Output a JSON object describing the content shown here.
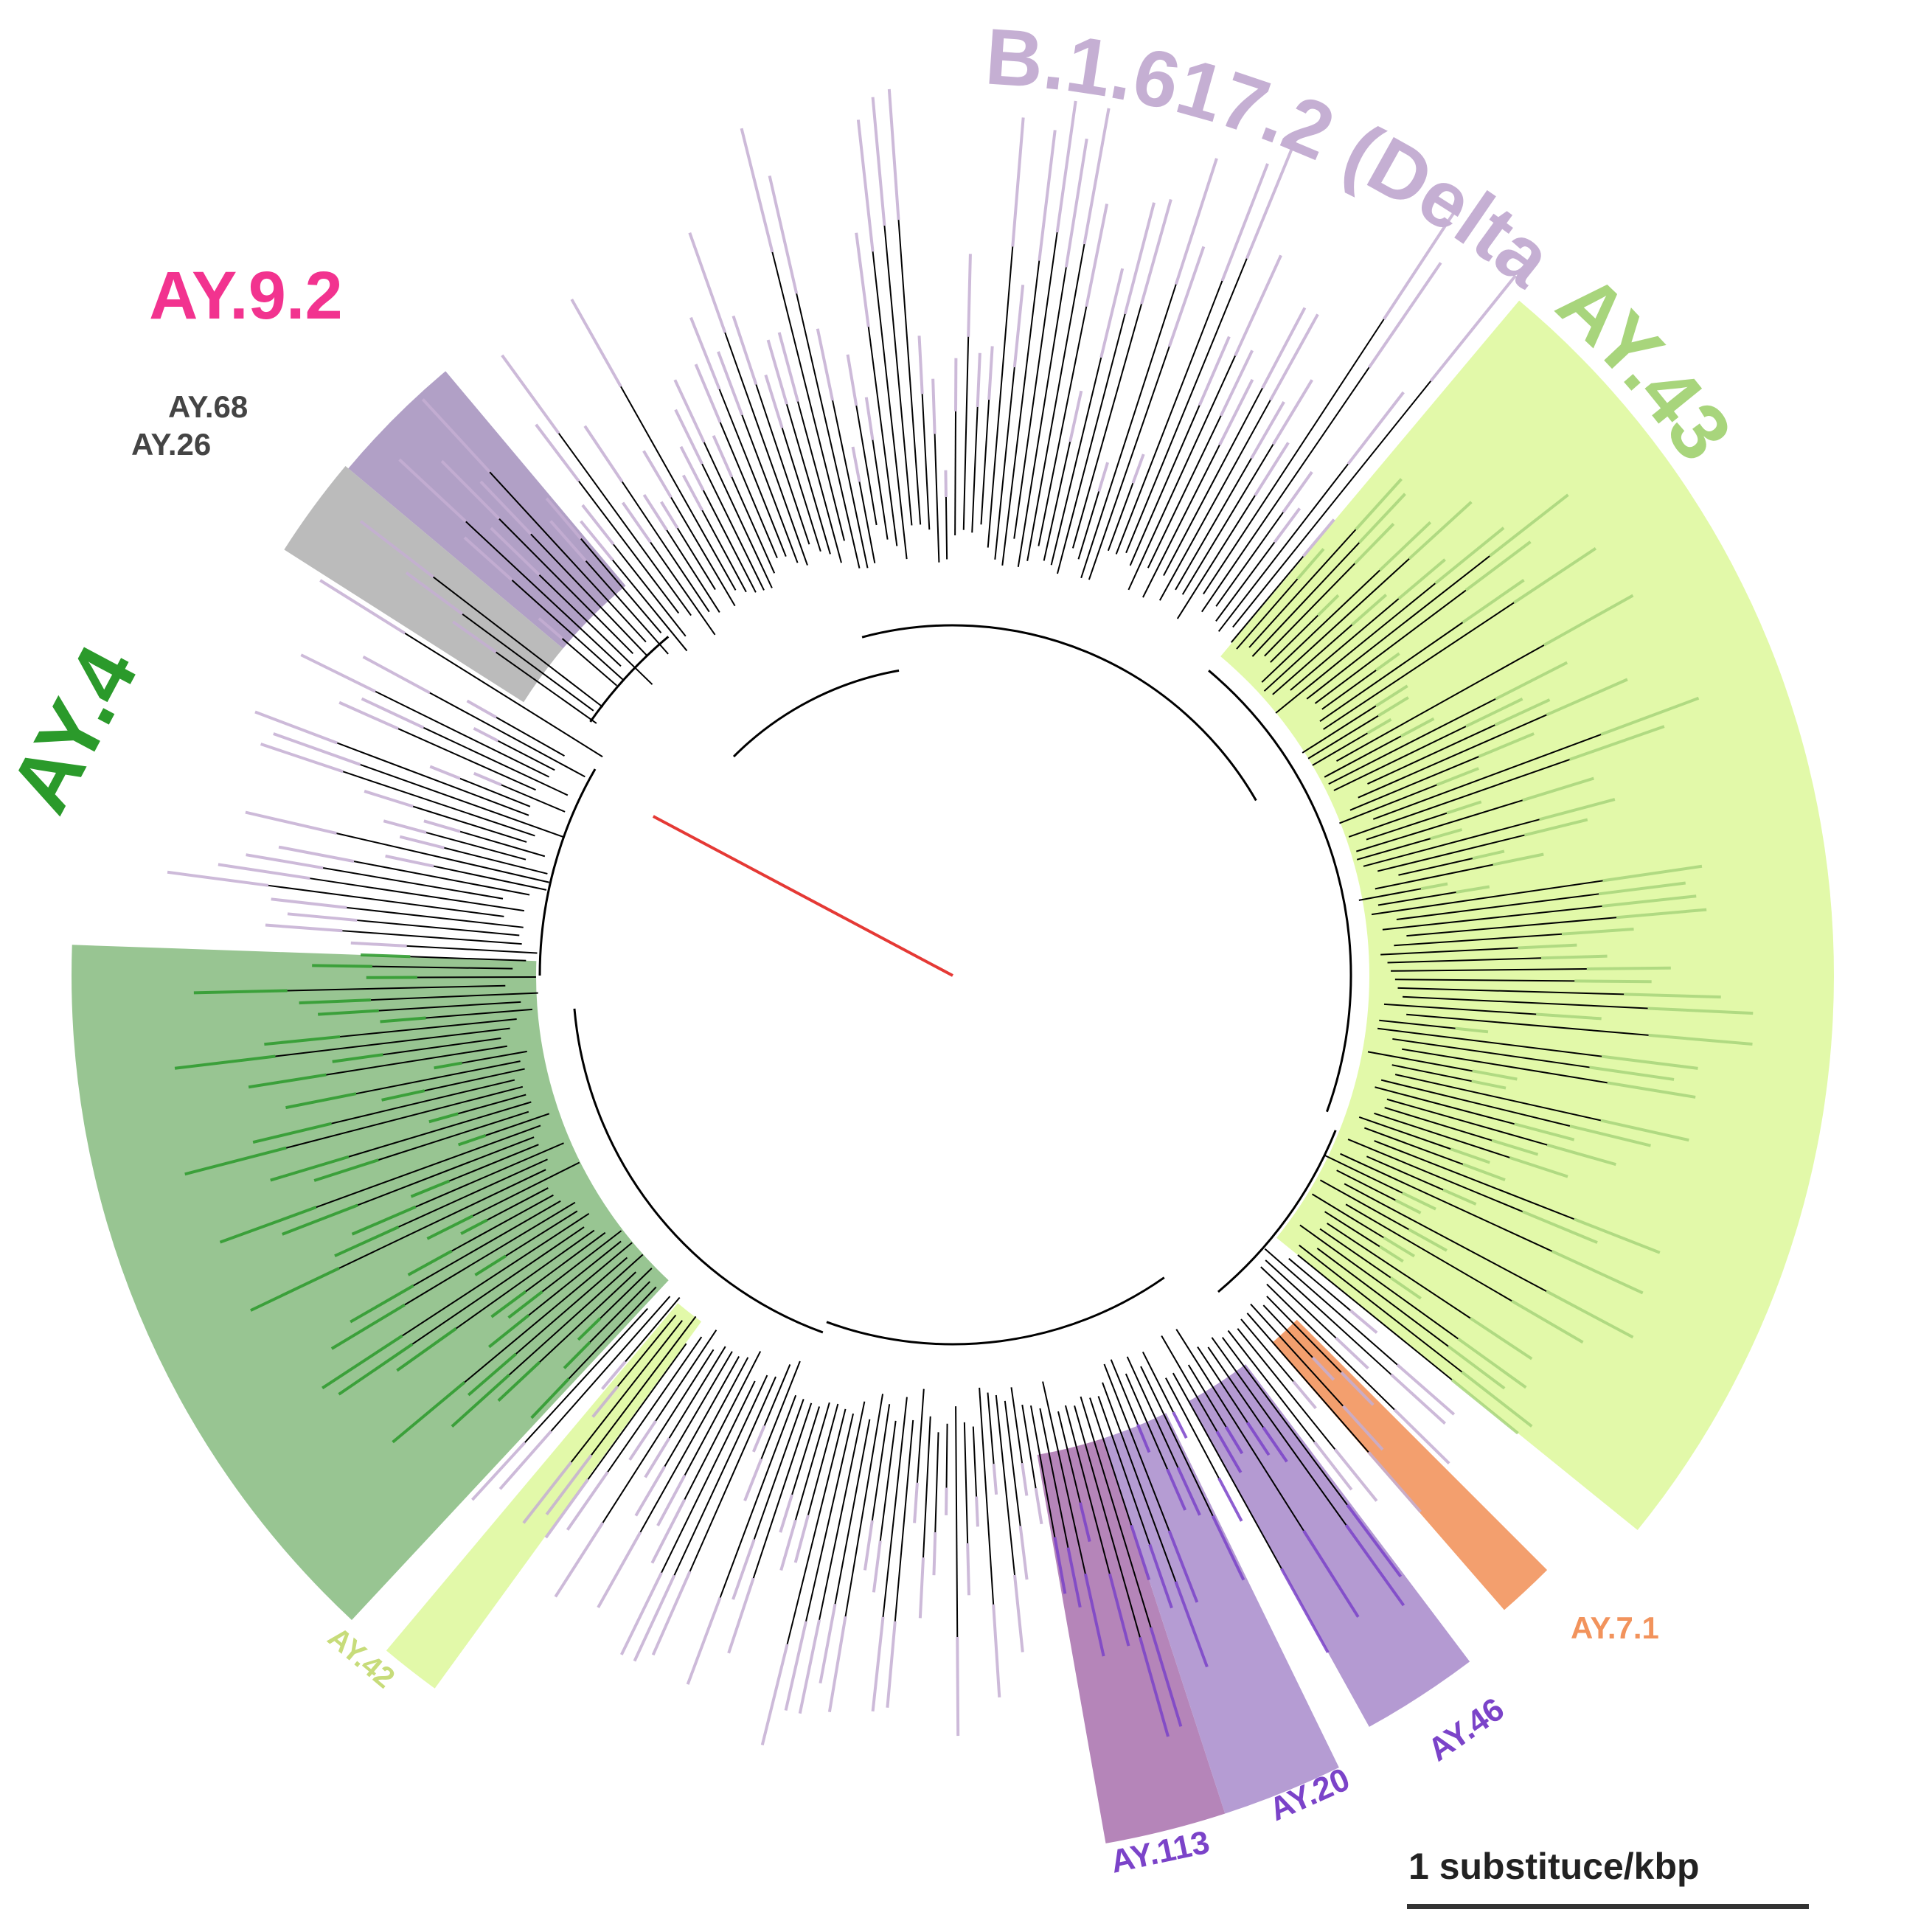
{
  "figure": {
    "scale_bar_label": "1 substituce/kbp"
  },
  "clades": [
    {
      "id": "delta",
      "label": "B.1.617.2 (Delta)",
      "color": "#c5afd3",
      "fill": "#dacbde"
    },
    {
      "id": "ay43",
      "label": "AY.43",
      "color": "#a8d57c",
      "fill": "#e2f9a9"
    },
    {
      "id": "ay4",
      "label": "AY.4",
      "color": "#2b9a2b",
      "fill": "#98c592"
    },
    {
      "id": "ay92",
      "label": "AY.9.2",
      "color": "#f2338f",
      "fill": "#b1a0c6"
    },
    {
      "id": "ay68",
      "label": "AY.68",
      "color": "#444444",
      "fill": "#bbbbbb"
    },
    {
      "id": "ay26",
      "label": "AY.26",
      "color": "#444444",
      "fill": "#bbbbbb"
    },
    {
      "id": "ay42",
      "label": "AY.42",
      "color": "#c7dc7a",
      "fill": "#e2f9a9"
    },
    {
      "id": "ay113",
      "label": "AY.113",
      "color": "#7b43c9",
      "fill": "#b585b9"
    },
    {
      "id": "ay20",
      "label": "AY.20",
      "color": "#7b43c9",
      "fill": "#b59cd3"
    },
    {
      "id": "ay46",
      "label": "AY.46",
      "color": "#7b43c9",
      "fill": "#b49ad2"
    },
    {
      "id": "ay71",
      "label": "AY.7.1",
      "color": "#f2935c",
      "fill": "#f39f6e"
    }
  ],
  "colors": {
    "branch": "#000000",
    "root_branch": "#e53935",
    "background": "#ffffff"
  }
}
